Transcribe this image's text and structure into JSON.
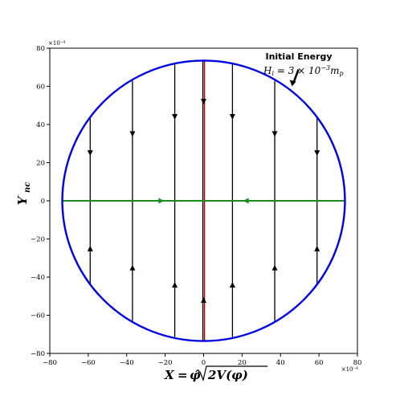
{
  "chart_data": {
    "type": "line",
    "title": "",
    "xlabel": "X = φ̂√2V(φ)",
    "ylabel": "Y_nc",
    "x_scale_label": "×10⁻⁴",
    "y_scale_label": "×10⁻⁴",
    "xlim": [
      -80,
      80
    ],
    "ylim": [
      -80,
      80
    ],
    "x_ticks": [
      -80,
      -60,
      -40,
      -20,
      0,
      20,
      40,
      60,
      80
    ],
    "y_ticks": [
      -80,
      -60,
      -40,
      -20,
      0,
      20,
      40,
      60,
      80
    ],
    "grid": false,
    "annotation": {
      "title": "Initial Energy",
      "equation": "H_i = 3 × 10⁻³ m_p",
      "arrow_to": {
        "x": 46,
        "y": 60
      }
    },
    "boundary_circle": {
      "center": [
        0,
        0
      ],
      "radius": 73.5,
      "color": "#0000e6"
    },
    "series": [
      {
        "style": "vertical_trajectories",
        "color": "#000000",
        "x": [
          -59,
          -37,
          -15,
          15,
          37,
          59
        ],
        "arrow_y_top": [
          25,
          35,
          44,
          44,
          35,
          25
        ],
        "arrow_y_bottom": [
          -25,
          -35,
          -44,
          -44,
          -35,
          -25
        ]
      },
      {
        "style": "central_trajectory",
        "color": "#b30000",
        "x": 0,
        "arrow_y": [
          52,
          -52
        ]
      },
      {
        "style": "horizontal_trajectory",
        "color": "#1a8c1a",
        "y": 0,
        "arrow_x": [
          -22,
          22
        ]
      }
    ]
  }
}
